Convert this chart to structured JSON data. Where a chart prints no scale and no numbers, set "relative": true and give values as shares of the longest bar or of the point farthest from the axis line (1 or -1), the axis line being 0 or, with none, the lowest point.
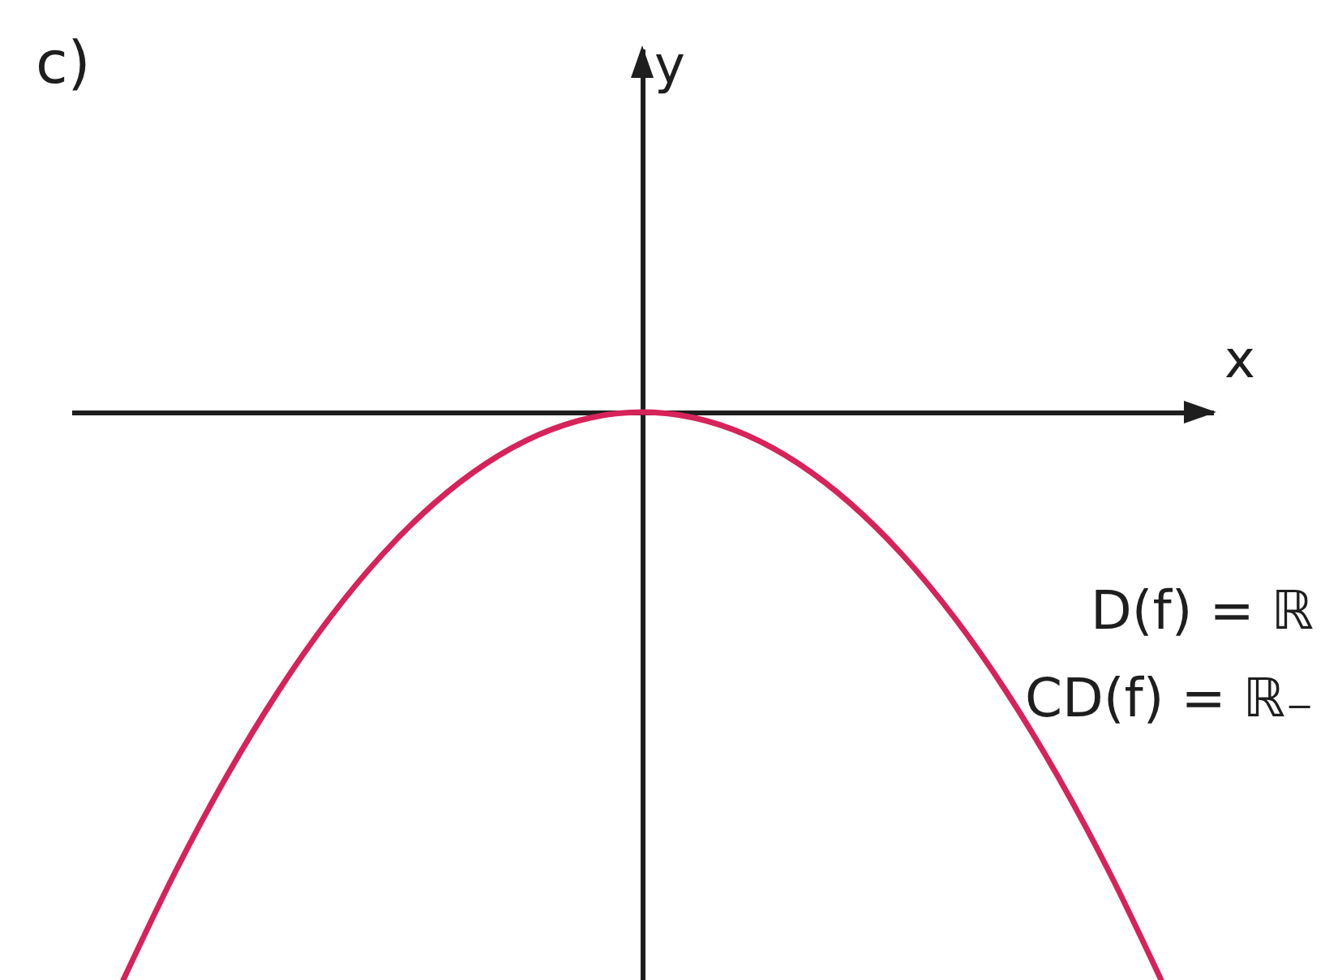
{
  "chart_data": {
    "type": "line",
    "title": "c)",
    "xlabel": "x",
    "relative": true,
    "line_style": "solid",
    "categories": [
      null,
      null,
      null,
      null,
      null,
      null,
      null,
      null,
      null,
      null,
      null,
      null,
      null,
      null,
      null,
      null,
      null,
      null,
      null,
      null,
      null
    ],
    "series": [
      {
        "color": "#d6235a",
        "values": [
          -1,
          -0.81,
          -0.64,
          -0.49,
          -0.36,
          -0.25,
          -0.16,
          -0.09,
          -0.04,
          -0.01,
          0,
          -0.01,
          -0.04,
          -0.09,
          -0.16,
          -0.25,
          -0.36,
          -0.49,
          -0.64,
          -0.81,
          -1
        ]
      }
    ],
    "annotations": [
      "y",
      "D(f) = ℝ",
      "CD(f) = ℝ₋"
    ]
  }
}
